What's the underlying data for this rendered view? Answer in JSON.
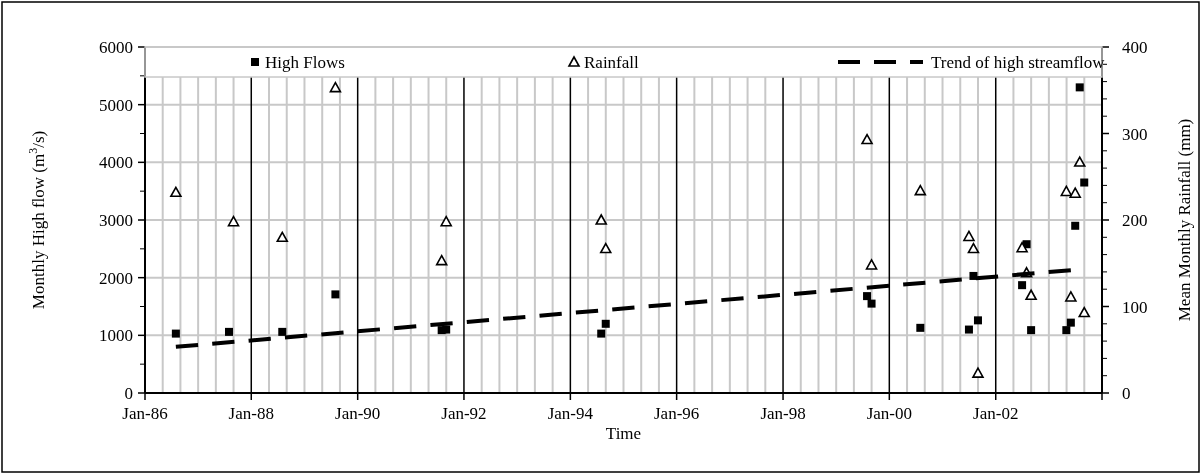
{
  "chart_data": {
    "type": "scatter",
    "xlabel": "Time",
    "ylabel": "Monthly High flow (m$^{3}$/s)",
    "y2label": "Mean Monthly Rainfall (mm)",
    "xlim": [
      "1986-01",
      "2004-01"
    ],
    "xticks": [
      {
        "value": "1986-01",
        "label": "Jan-86"
      },
      {
        "value": "1988-01",
        "label": "Jan-88"
      },
      {
        "value": "1990-01",
        "label": "Jan-90"
      },
      {
        "value": "1992-01",
        "label": "Jan-92"
      },
      {
        "value": "1994-01",
        "label": "Jan-94"
      },
      {
        "value": "1996-01",
        "label": "Jan-96"
      },
      {
        "value": "1998-01",
        "label": "Jan-98"
      },
      {
        "value": "2000-01",
        "label": "Jan-00"
      },
      {
        "value": "2002-01",
        "label": "Jan-02"
      },
      {
        "value": "2004-01",
        "label": null
      }
    ],
    "ylim": [
      0,
      6000
    ],
    "yticks": [
      0,
      1000,
      2000,
      3000,
      4000,
      5000,
      6000
    ],
    "y2lim": [
      0,
      400
    ],
    "y2ticks": [
      0,
      100,
      200,
      300,
      400
    ],
    "grid": true,
    "legend": "top",
    "series": [
      {
        "name": "High Flows",
        "marker": "square",
        "color": "#000000",
        "x": [
          "1986-08",
          "1987-08",
          "1988-08",
          "1989-08",
          "1991-08",
          "1991-09",
          "1994-08",
          "1994-09",
          "1999-08",
          "1999-09",
          "2000-08",
          "2001-07",
          "2001-08",
          "2001-09",
          "2002-07",
          "2002-08",
          "2002-09",
          "2003-05",
          "2003-06",
          "2003-07",
          "2003-08",
          "2003-09"
        ],
        "values": [
          1030,
          1060,
          1060,
          1710,
          1090,
          1100,
          1030,
          1200,
          1680,
          1550,
          1130,
          1100,
          2030,
          1260,
          1870,
          2580,
          1090,
          1090,
          1220,
          2900,
          5300,
          3650
        ]
      },
      {
        "name": "Rainfall",
        "marker": "triangle",
        "axis": "y2",
        "color": "#000000",
        "x": [
          "1986-08",
          "1987-09",
          "1988-08",
          "1989-08",
          "1991-08",
          "1991-09",
          "1994-08",
          "1994-09",
          "1999-08",
          "1999-09",
          "2000-08",
          "2001-07",
          "2001-08",
          "2001-09",
          "2002-07",
          "2002-08",
          "2002-09",
          "2003-05",
          "2003-06",
          "2003-07",
          "2003-08",
          "2003-09"
        ],
        "values": [
          232,
          198,
          180,
          353,
          153,
          198,
          200,
          167,
          293,
          148,
          234,
          181,
          167,
          23,
          168,
          139,
          113,
          233,
          111,
          231,
          267,
          93
        ]
      },
      {
        "name": "Trend of high streamflow",
        "type": "line",
        "line_style": "dashed",
        "marker": "none",
        "color": "#000000",
        "x": [
          "1986-08",
          "2003-06"
        ],
        "values": [
          800,
          2130
        ]
      }
    ]
  }
}
